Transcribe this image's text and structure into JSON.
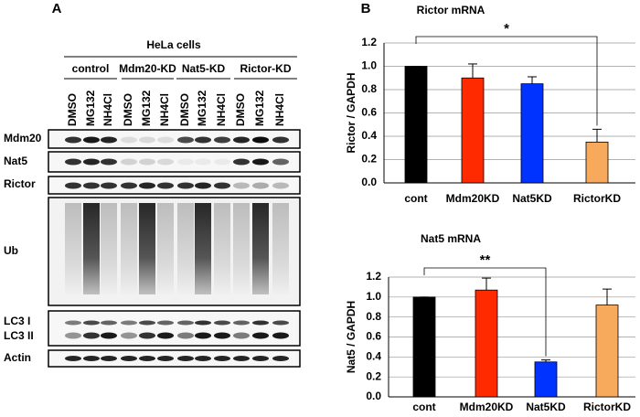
{
  "panel_labels": [
    "A",
    "B"
  ],
  "blot": {
    "title": "HeLa cells",
    "groups": [
      "control",
      "Mdm20-KD",
      "Nat5-KD",
      "Rictor-KD"
    ],
    "lanes": [
      "DMSO",
      "MG132",
      "NH4Cl",
      "DMSO",
      "MG132",
      "NH4Cl",
      "DMSO",
      "MG132",
      "NH4Cl",
      "DMSO",
      "MG132",
      "NH4Cl"
    ],
    "rows": [
      "Mdm20",
      "Nat5",
      "Rictor",
      "Ub",
      "LC3 I",
      "LC3 II",
      "Actin"
    ]
  },
  "chart_data": [
    {
      "type": "bar",
      "title": "Rictor mRNA",
      "ylabel": "Rictor / GAPDH",
      "categories": [
        "cont",
        "Mdm20KD",
        "Nat5KD",
        "RictorKD"
      ],
      "values": [
        1.0,
        0.9,
        0.85,
        0.35
      ],
      "errors": [
        0,
        0.12,
        0.06,
        0.11
      ],
      "colors": [
        "#000000",
        "#ff2a00",
        "#0033ff",
        "#f7a95c"
      ],
      "ylim": [
        0,
        1.2
      ],
      "yticks": [
        {
          "value": 0,
          "label": "0.0"
        },
        0.2,
        0.4,
        0.6,
        0.8,
        {
          "value": 1,
          "label": "1.0"
        },
        1.2
      ],
      "grid": true,
      "annotation": "*"
    },
    {
      "type": "bar",
      "title": "Nat5 mRNA",
      "ylabel": "Nat5 / GAPDH",
      "categories": [
        "cont",
        "Mdm20KD",
        "Nat5KD",
        "RictorKD"
      ],
      "values": [
        1.0,
        1.07,
        0.35,
        0.92
      ],
      "errors": [
        0,
        0.12,
        0.02,
        0.16
      ],
      "colors": [
        "#000000",
        "#ff2a00",
        "#0033ff",
        "#f7a95c"
      ],
      "ylim": [
        0,
        1.2
      ],
      "yticks": [
        {
          "value": 0,
          "label": "0.0"
        },
        0.2,
        0.4,
        0.6,
        0.8,
        {
          "value": 1,
          "label": "1.0"
        },
        1.2
      ],
      "grid": true,
      "annotation": "**"
    }
  ]
}
